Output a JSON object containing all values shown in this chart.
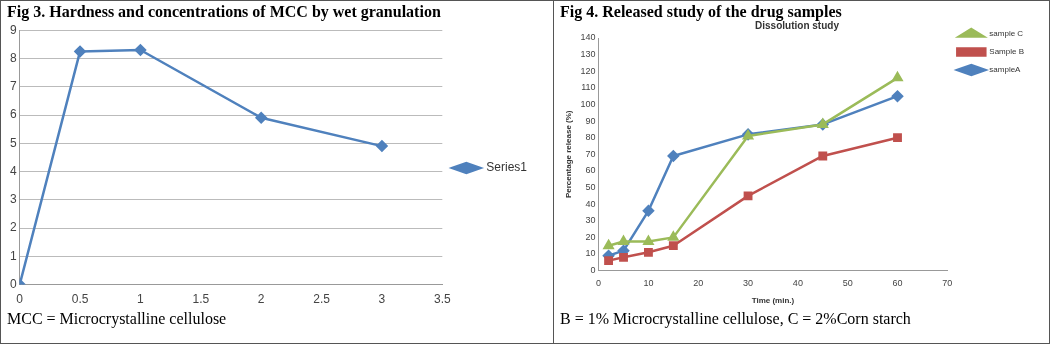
{
  "chart_data": [
    {
      "type": "line",
      "title": "Fig 3. Hardness and concentrations of MCC by wet granulation",
      "x": [
        0,
        0.5,
        1,
        2,
        3
      ],
      "series": [
        {
          "name": "Series1",
          "color": "#4f81bd",
          "values": [
            0,
            8.25,
            8.3,
            5.9,
            4.9
          ],
          "marker": "diamond"
        }
      ],
      "xlim": [
        0,
        3.5
      ],
      "xticks": [
        0,
        0.5,
        1,
        1.5,
        2,
        2.5,
        3,
        3.5
      ],
      "ylim": [
        0,
        9
      ],
      "yticks": [
        0,
        1,
        2,
        3,
        4,
        5,
        6,
        7,
        8,
        9
      ],
      "grid": "y",
      "legend": "right",
      "line_style": "solid",
      "annotations": [
        "MCC = Microcrystalline cellulose"
      ]
    },
    {
      "type": "line",
      "title": "Fig 4. Released study of the drug samples",
      "subtitle": "Dissolution study",
      "xlabel": "Time (min.)",
      "ylabel": "Percentage release (%)",
      "x": [
        2,
        5,
        10,
        15,
        30,
        45,
        60
      ],
      "series": [
        {
          "name": "sampleA",
          "color": "#4f81bd",
          "values": [
            9,
            12,
            36,
            69,
            82,
            88,
            105
          ],
          "marker": "diamond"
        },
        {
          "name": "Sample B",
          "color": "#c0504d",
          "values": [
            6,
            8,
            11,
            15,
            45,
            69,
            80
          ],
          "marker": "square"
        },
        {
          "name": "sample C",
          "color": "#9bbb59",
          "values": [
            15,
            17.5,
            17.5,
            20,
            81,
            88,
            116
          ],
          "marker": "triangle"
        }
      ],
      "xlim": [
        0,
        70
      ],
      "xticks": [
        0,
        10,
        20,
        30,
        40,
        50,
        60,
        70
      ],
      "ylim": [
        0,
        140
      ],
      "yticks": [
        0,
        10,
        20,
        30,
        40,
        50,
        60,
        70,
        80,
        90,
        100,
        110,
        120,
        130,
        140
      ],
      "grid": false,
      "legend": "top right",
      "line_style": "solid",
      "annotations": [
        "B = 1% Microcrystalline cellulose, C = 2%Corn starch"
      ]
    }
  ]
}
